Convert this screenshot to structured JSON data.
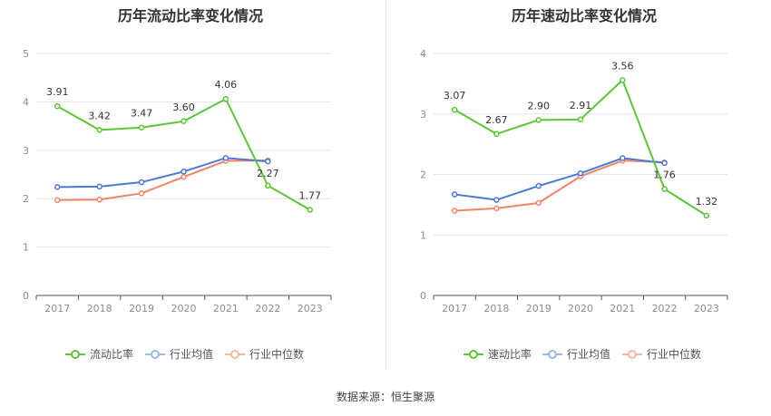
{
  "source_text": "数据来源：恒生聚源",
  "colors": {
    "primary": "#5cc635",
    "avg": "#4a78d6",
    "median": "#f08566"
  },
  "chart_data": [
    {
      "type": "line",
      "title": "历年流动比率变化情况",
      "categories": [
        "2017",
        "2018",
        "2019",
        "2020",
        "2021",
        "2022",
        "2023"
      ],
      "ylim": [
        0,
        5
      ],
      "yticks": [
        0,
        1,
        2,
        3,
        4,
        5
      ],
      "grid": true,
      "legend_position": "bottom",
      "series": [
        {
          "name": "流动比率",
          "values": [
            3.91,
            3.42,
            3.47,
            3.6,
            4.06,
            2.27,
            1.77
          ],
          "labels": [
            "3.91",
            "3.42",
            "3.47",
            "3.60",
            "4.06",
            "2.27",
            "1.77"
          ],
          "color": "#5cc635"
        },
        {
          "name": "行业均值",
          "values": [
            2.24,
            2.25,
            2.34,
            2.56,
            2.84,
            2.77,
            null
          ],
          "color": "#4a78d6"
        },
        {
          "name": "行业中位数",
          "values": [
            1.97,
            1.98,
            2.11,
            2.45,
            2.78,
            2.79,
            null
          ],
          "color": "#f08566"
        }
      ]
    },
    {
      "type": "line",
      "title": "历年速动比率变化情况",
      "categories": [
        "2017",
        "2018",
        "2019",
        "2020",
        "2021",
        "2022",
        "2023"
      ],
      "ylim": [
        0,
        4
      ],
      "yticks": [
        0,
        1,
        2,
        3,
        4
      ],
      "grid": true,
      "legend_position": "bottom",
      "series": [
        {
          "name": "速动比率",
          "values": [
            3.07,
            2.67,
            2.9,
            2.91,
            3.56,
            1.76,
            1.32
          ],
          "labels": [
            "3.07",
            "2.67",
            "2.90",
            "2.91",
            "3.56",
            "1.76",
            "1.32"
          ],
          "color": "#5cc635"
        },
        {
          "name": "行业均值",
          "values": [
            1.67,
            1.58,
            1.81,
            2.02,
            2.27,
            2.19,
            null
          ],
          "color": "#4a78d6"
        },
        {
          "name": "行业中位数",
          "values": [
            1.4,
            1.44,
            1.53,
            1.97,
            2.23,
            2.2,
            null
          ],
          "color": "#f08566"
        }
      ]
    }
  ]
}
